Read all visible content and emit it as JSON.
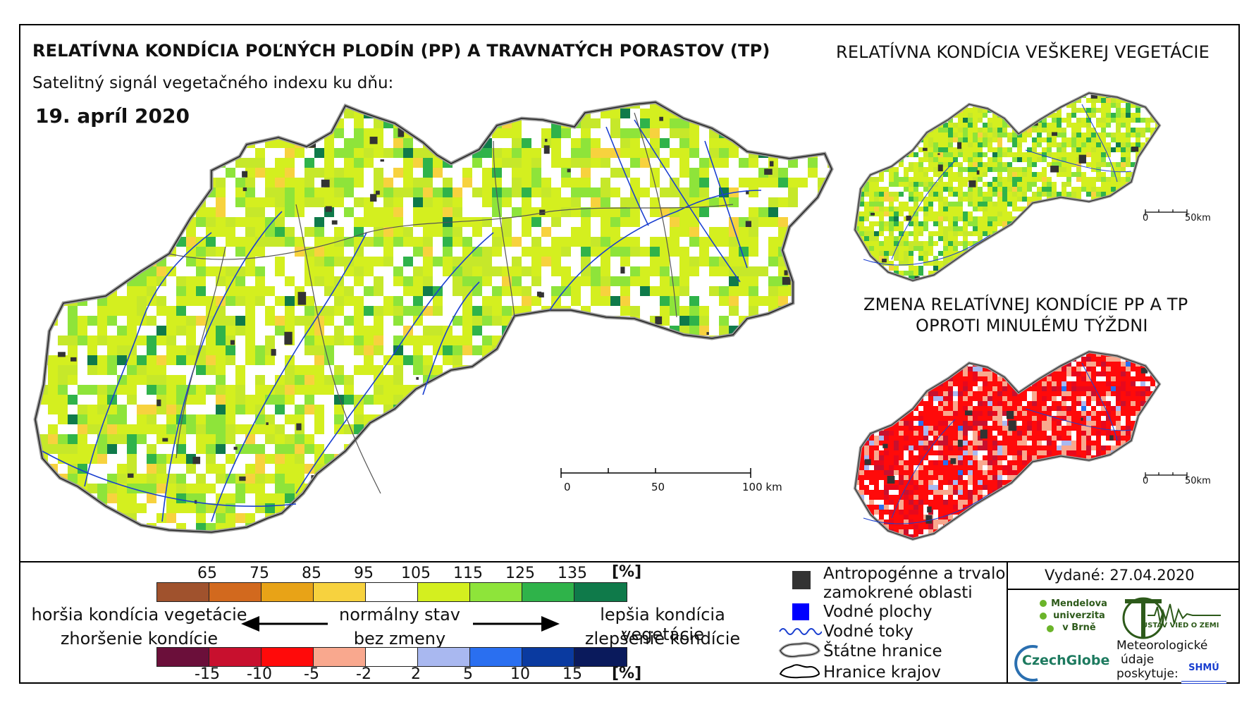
{
  "titles": {
    "main": "RELATÍVNA KONDÍCIA POĽNÝCH PLODÍN (PP) A TRAVNATÝCH PORASTOV (TP)",
    "subtitle": "Satelitný signál vegetačného indexu ku dňu:",
    "date": "19. apríl 2020",
    "side_top": "RELATÍVNA KONDÍCIA VEŠKEREJ VEGETÁCIE",
    "side_bottom_line1": "ZMENA RELATÍVNEJ KONDÍCIE PP A TP",
    "side_bottom_line2": "OPROTI MINULÉMU TÝŽDNI"
  },
  "scale_main": {
    "labels": [
      "0",
      "50",
      "100 km"
    ]
  },
  "scale_small": {
    "labels": [
      "0",
      "50km"
    ]
  },
  "legend_condition": {
    "labels": [
      "65",
      "75",
      "85",
      "95",
      "105",
      "115",
      "125",
      "135"
    ],
    "unit": "[%]",
    "colors": [
      "#a0522d",
      "#d2691e",
      "#e8a317",
      "#f7d23e",
      "#ffffff",
      "#d4ef1f",
      "#8ee43a",
      "#2fb34a",
      "#0f7a4a"
    ]
  },
  "legend_change": {
    "labels": [
      "-15",
      "-10",
      "-5",
      "-2",
      "2",
      "5",
      "10",
      "15"
    ],
    "unit": "[%]",
    "colors": [
      "#6b0f3a",
      "#c8102e",
      "#ff0a0a",
      "#f9a88e",
      "#ffffff",
      "#a9b8f0",
      "#2a6ff0",
      "#0a3aa0",
      "#0a1a5c"
    ]
  },
  "legend_text": {
    "worse_line1": "horšia kondícia vegetácie",
    "worse_line2": "zhoršenie kondície",
    "normal_line1": "normálny stav",
    "normal_line2": "bez zmeny",
    "better_line1": "lepšia kondícia vegetácie",
    "better_line2": "zlepšenie kondície"
  },
  "legend_symbols": [
    {
      "label_line1": "Antropogénne a trvalo",
      "label_line2": "zamokrené oblasti",
      "icon": "dark-square-icon",
      "color": "#333333"
    },
    {
      "label_line1": "Vodné plochy",
      "icon": "blue-square-icon",
      "color": "#0000ff"
    },
    {
      "label_line1": "Vodné toky",
      "icon": "river-line-icon",
      "color": "#1a3fd0"
    },
    {
      "label_line1": "Štátne hranice",
      "icon": "state-border-icon",
      "color": "#888888"
    },
    {
      "label_line1": "Hranice krajov",
      "icon": "region-border-icon",
      "color": "#000000"
    }
  ],
  "issued": "Vydané: 27.04.2020",
  "logos": {
    "mendel": [
      "Mendelova",
      "univerzita",
      "v Brně"
    ],
    "czechglobe": "CzechGlobe",
    "institute": "ÚSTAV VIED O ZEMI",
    "meteo_line1": "Meteorologické",
    "meteo_line2": "údaje",
    "meteo_line3": "poskytuje:",
    "shmu": "SHMÚ"
  }
}
